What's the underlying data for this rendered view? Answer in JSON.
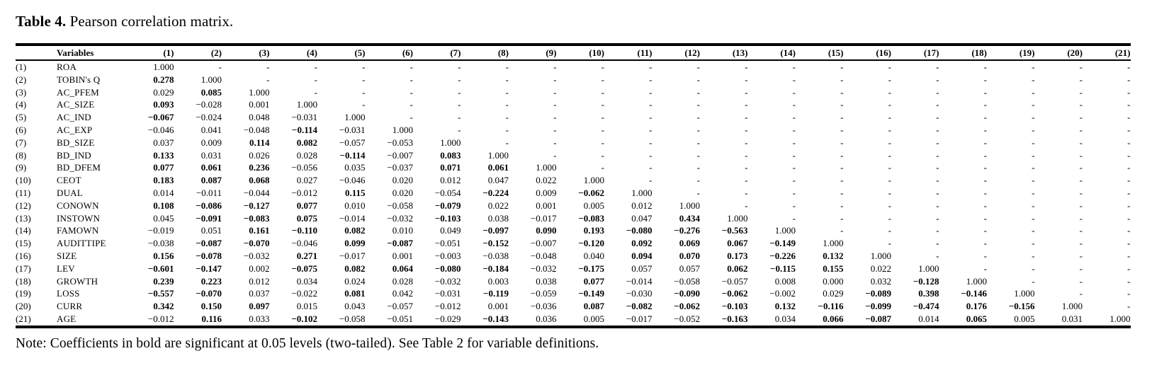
{
  "page": {
    "title_bold": "Table 4.",
    "title_rest": " Pearson correlation matrix.",
    "note": "Note: Coefficients in bold are significant at 0.05 levels (two-tailed). See Table 2 for variable definitions."
  },
  "table": {
    "header_variables": "Variables",
    "column_headers": [
      "(1)",
      "(2)",
      "(3)",
      "(4)",
      "(5)",
      "(6)",
      "(7)",
      "(8)",
      "(9)",
      "(10)",
      "(11)",
      "(12)",
      "(13)",
      "(14)",
      "(15)",
      "(16)",
      "(17)",
      "(18)",
      "(19)",
      "(20)",
      "(21)"
    ],
    "bold_marker": "*",
    "rows": [
      {
        "id": "(1)",
        "name": "ROA",
        "cells": [
          "1.000",
          "-",
          "-",
          "-",
          "-",
          "-",
          "-",
          "-",
          "-",
          "-",
          "-",
          "-",
          "-",
          "-",
          "-",
          "-",
          "-",
          "-",
          "-",
          "-",
          "-"
        ]
      },
      {
        "id": "(2)",
        "name": "TOBIN's Q",
        "cells": [
          "*0.278",
          "1.000",
          "-",
          "-",
          "-",
          "-",
          "-",
          "-",
          "-",
          "-",
          "-",
          "-",
          "-",
          "-",
          "-",
          "-",
          "-",
          "-",
          "-",
          "-",
          "-"
        ]
      },
      {
        "id": "(3)",
        "name": "AC_PFEM",
        "cells": [
          "0.029",
          "*0.085",
          "1.000",
          "-",
          "-",
          "-",
          "-",
          "-",
          "-",
          "-",
          "-",
          "-",
          "-",
          "-",
          "-",
          "-",
          "-",
          "-",
          "-",
          "-",
          "-"
        ]
      },
      {
        "id": "(4)",
        "name": "AC_SIZE",
        "cells": [
          "*0.093",
          "−0.028",
          "0.001",
          "1.000",
          "-",
          "-",
          "-",
          "-",
          "-",
          "-",
          "-",
          "-",
          "-",
          "-",
          "-",
          "-",
          "-",
          "-",
          "-",
          "-",
          "-"
        ]
      },
      {
        "id": "(5)",
        "name": "AC_IND",
        "cells": [
          "*−0.067",
          "−0.024",
          "0.048",
          "−0.031",
          "1.000",
          "-",
          "-",
          "-",
          "-",
          "-",
          "-",
          "-",
          "-",
          "-",
          "-",
          "-",
          "-",
          "-",
          "-",
          "-",
          "-"
        ]
      },
      {
        "id": "(6)",
        "name": "AC_EXP",
        "cells": [
          "−0.046",
          "0.041",
          "−0.048",
          "*−0.114",
          "−0.031",
          "1.000",
          "-",
          "-",
          "-",
          "-",
          "-",
          "-",
          "-",
          "-",
          "-",
          "-",
          "-",
          "-",
          "-",
          "-",
          "-"
        ]
      },
      {
        "id": "(7)",
        "name": "BD_SIZE",
        "cells": [
          "0.037",
          "0.009",
          "*0.114",
          "*0.082",
          "−0.057",
          "−0.053",
          "1.000",
          "-",
          "-",
          "-",
          "-",
          "-",
          "-",
          "-",
          "-",
          "-",
          "-",
          "-",
          "-",
          "-",
          "-"
        ]
      },
      {
        "id": "(8)",
        "name": "BD_IND",
        "cells": [
          "*0.133",
          "0.031",
          "0.026",
          "0.028",
          "*−0.114",
          "−0.007",
          "*0.083",
          "1.000",
          "-",
          "-",
          "-",
          "-",
          "-",
          "-",
          "-",
          "-",
          "-",
          "-",
          "-",
          "-",
          "-"
        ]
      },
      {
        "id": "(9)",
        "name": "BD_DFEM",
        "cells": [
          "*0.077",
          "*0.061",
          "*0.236",
          "−0.056",
          "0.035",
          "−0.037",
          "*0.071",
          "*0.061",
          "1.000",
          "-",
          "-",
          "-",
          "-",
          "-",
          "-",
          "-",
          "-",
          "-",
          "-",
          "-",
          "-"
        ]
      },
      {
        "id": "(10)",
        "name": "CEOT",
        "cells": [
          "*0.183",
          "*0.087",
          "*0.068",
          "0.027",
          "−0.046",
          "0.020",
          "0.012",
          "0.047",
          "0.022",
          "1.000",
          "-",
          "-",
          "-",
          "-",
          "-",
          "-",
          "-",
          "-",
          "-",
          "-",
          "-"
        ]
      },
      {
        "id": "(11)",
        "name": "DUAL",
        "cells": [
          "0.014",
          "−0.011",
          "−0.044",
          "−0.012",
          "*0.115",
          "0.020",
          "−0.054",
          "*−0.224",
          "0.009",
          "*−0.062",
          "1.000",
          "-",
          "-",
          "-",
          "-",
          "-",
          "-",
          "-",
          "-",
          "-",
          "-"
        ]
      },
      {
        "id": "(12)",
        "name": "CONOWN",
        "cells": [
          "*0.108",
          "*−0.086",
          "*−0.127",
          "*0.077",
          "0.010",
          "−0.058",
          "*−0.079",
          "0.022",
          "0.001",
          "0.005",
          "0.012",
          "1.000",
          "-",
          "-",
          "-",
          "-",
          "-",
          "-",
          "-",
          "-",
          "-"
        ]
      },
      {
        "id": "(13)",
        "name": "INSTOWN",
        "cells": [
          "0.045",
          "*−0.091",
          "*−0.083",
          "*0.075",
          "−0.014",
          "−0.032",
          "*−0.103",
          "0.038",
          "−0.017",
          "*−0.083",
          "0.047",
          "*0.434",
          "1.000",
          "-",
          "-",
          "-",
          "-",
          "-",
          "-",
          "-",
          "-"
        ]
      },
      {
        "id": "(14)",
        "name": "FAMOWN",
        "cells": [
          "−0.019",
          "0.051",
          "*0.161",
          "*−0.110",
          "*0.082",
          "0.010",
          "0.049",
          "*−0.097",
          "*0.090",
          "*0.193",
          "*−0.080",
          "*−0.276",
          "*−0.563",
          "1.000",
          "-",
          "-",
          "-",
          "-",
          "-",
          "-",
          "-"
        ]
      },
      {
        "id": "(15)",
        "name": "AUDITTIPE",
        "cells": [
          "−0.038",
          "*−0.087",
          "*−0.070",
          "−0.046",
          "*0.099",
          "*−0.087",
          "−0.051",
          "*−0.152",
          "−0.007",
          "*−0.120",
          "*0.092",
          "*0.069",
          "*0.067",
          "*−0.149",
          "1.000",
          "-",
          "-",
          "-",
          "-",
          "-",
          "-"
        ]
      },
      {
        "id": "(16)",
        "name": "SIZE",
        "cells": [
          "*0.156",
          "*−0.078",
          "−0.032",
          "*0.271",
          "−0.017",
          "0.001",
          "−0.003",
          "−0.038",
          "−0.048",
          "0.040",
          "*0.094",
          "*0.070",
          "*0.173",
          "*−0.226",
          "*0.132",
          "1.000",
          "-",
          "-",
          "-",
          "-",
          "-"
        ]
      },
      {
        "id": "(17)",
        "name": "LEV",
        "cells": [
          "*−0.601",
          "*−0.147",
          "0.002",
          "*−0.075",
          "*0.082",
          "*0.064",
          "*−0.080",
          "*−0.184",
          "−0.032",
          "*−0.175",
          "0.057",
          "0.057",
          "*0.062",
          "*−0.115",
          "*0.155",
          "0.022",
          "1.000",
          "-",
          "-",
          "-",
          "-"
        ]
      },
      {
        "id": "(18)",
        "name": "GROWTH",
        "cells": [
          "*0.239",
          "*0.223",
          "0.012",
          "0.034",
          "0.024",
          "0.028",
          "−0.032",
          "0.003",
          "0.038",
          "*0.077",
          "−0.014",
          "−0.058",
          "−0.057",
          "0.008",
          "0.000",
          "0.032",
          "*−0.128",
          "1.000",
          "-",
          "-",
          "-"
        ]
      },
      {
        "id": "(19)",
        "name": "LOSS",
        "cells": [
          "*−0.557",
          "*−0.070",
          "0.037",
          "−0.022",
          "*0.081",
          "0.042",
          "−0.031",
          "*−0.119",
          "−0.059",
          "*−0.149",
          "−0.030",
          "*−0.090",
          "*−0.062",
          "−0.002",
          "0.029",
          "*−0.089",
          "*0.398",
          "*−0.146",
          "1.000",
          "-",
          "-"
        ]
      },
      {
        "id": "(20)",
        "name": "CURR",
        "cells": [
          "*0.342",
          "*0.150",
          "*0.097",
          "0.015",
          "0.043",
          "−0.057",
          "−0.012",
          "0.001",
          "−0.036",
          "*0.087",
          "*−0.082",
          "*−0.062",
          "*−0.103",
          "*0.132",
          "*−0.116",
          "*−0.099",
          "*−0.474",
          "*0.176",
          "*−0.156",
          "1.000",
          "-"
        ]
      },
      {
        "id": "(21)",
        "name": "AGE",
        "cells": [
          "−0.012",
          "*0.116",
          "0.033",
          "*−0.102",
          "−0.058",
          "−0.051",
          "−0.029",
          "*−0.143",
          "0.036",
          "0.005",
          "−0.017",
          "−0.052",
          "*−0.163",
          "0.034",
          "*0.066",
          "*−0.087",
          "0.014",
          "*0.065",
          "0.005",
          "0.031",
          "1.000"
        ]
      }
    ]
  }
}
